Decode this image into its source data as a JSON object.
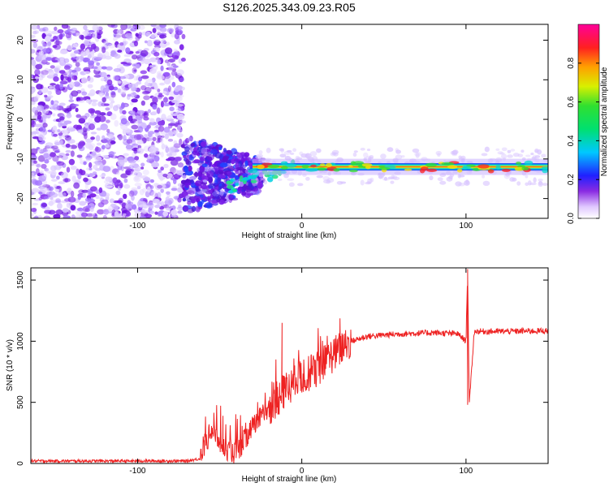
{
  "chart_data": [
    {
      "type": "heatmap",
      "title": "S126.2025.343.09.23.R05",
      "xlabel": "Height of straight line (km)",
      "ylabel": "Frequency (Hz)",
      "xlim": [
        -165,
        150
      ],
      "ylim": [
        -25,
        24
      ],
      "x_ticks": [
        -100,
        0,
        100
      ],
      "x_tick_labels": [
        "-100",
        "0",
        "100"
      ],
      "y_ticks": [
        -20,
        -10,
        0,
        10,
        20
      ],
      "y_tick_labels": [
        "-20",
        "-10",
        "0",
        "10",
        "20"
      ],
      "colorbar": {
        "label": "Normalized spectral amplitude",
        "range": [
          0,
          1
        ],
        "ticks": [
          0.0,
          0.2,
          0.4,
          0.6,
          0.8
        ],
        "tick_labels": [
          "0.0",
          "0.2",
          "0.4",
          "0.6",
          "0.8"
        ]
      },
      "signal_track": {
        "frequency_hz": -12,
        "from_km": -30,
        "to_km": 150,
        "peak_amplitude": 1.0
      },
      "noise_region": {
        "from_km": -165,
        "to_km": -72,
        "typical_amplitude": 0.15
      }
    },
    {
      "type": "line",
      "xlabel": "Height of straight line (km)",
      "ylabel": "SNR (10 * v/v)",
      "xlim": [
        -165,
        150
      ],
      "ylim": [
        0,
        1600
      ],
      "x_ticks": [
        -100,
        0,
        100
      ],
      "x_tick_labels": [
        "-100",
        "0",
        "100"
      ],
      "y_ticks": [
        0,
        500,
        1000,
        1500
      ],
      "y_tick_labels": [
        "0",
        "500",
        "1000",
        "1500"
      ],
      "color": "#ee2222",
      "x": [
        -165,
        -70,
        -62,
        -55,
        -48,
        -40,
        -30,
        -20,
        -10,
        0,
        10,
        20,
        30,
        40,
        60,
        80,
        95,
        100,
        101,
        102,
        105,
        120,
        150
      ],
      "y": [
        20,
        20,
        40,
        280,
        130,
        80,
        300,
        450,
        600,
        700,
        780,
        900,
        1000,
        1040,
        1060,
        1070,
        1060,
        1000,
        1580,
        480,
        1080,
        1080,
        1085
      ],
      "spikes": [
        {
          "x": -12,
          "y": 1150
        },
        {
          "x": -48,
          "y": 390
        },
        {
          "x": 101,
          "y": 1590
        },
        {
          "x": 101,
          "y": 480
        }
      ]
    }
  ]
}
